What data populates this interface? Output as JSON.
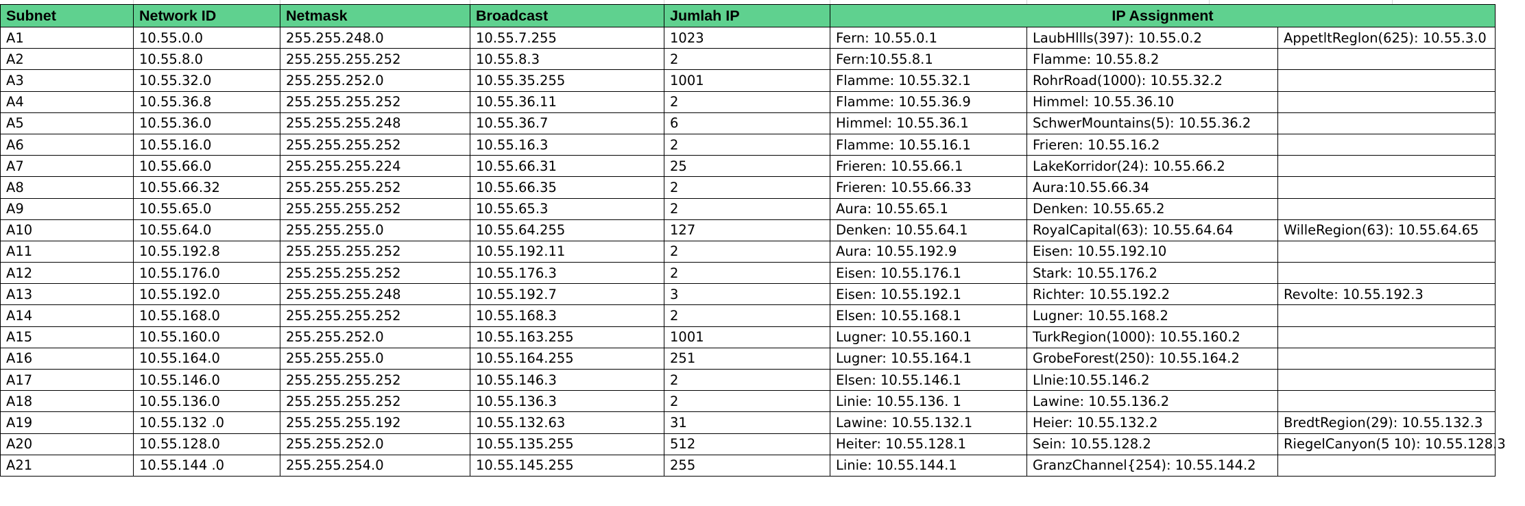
{
  "table": {
    "headers": {
      "subnet": "Subnet",
      "network_id": "Network ID",
      "netmask": "Netmask",
      "broadcast": "Broadcast",
      "jumlah_ip": "Jumlah IP",
      "ip_assignment": "IP Assignment"
    },
    "rows": [
      {
        "subnet": "A1",
        "network_id": "10.55.0.0",
        "netmask": "255.255.248.0",
        "broadcast": "10.55.7.255",
        "jumlah_ip": "1023",
        "assign": [
          "Fern: 10.55.0.1",
          "LaubHllls(397): 10.55.0.2",
          "AppetltReglon(625): 10.55.3.0"
        ]
      },
      {
        "subnet": "A2",
        "network_id": "10.55.8.0",
        "netmask": "255.255.255.252",
        "broadcast": "10.55.8.3",
        "jumlah_ip": "2",
        "assign": [
          "Fern:10.55.8.1",
          "Flamme: 10.55.8.2",
          ""
        ]
      },
      {
        "subnet": "A3",
        "network_id": "10.55.32.0",
        "netmask": "255.255.252.0",
        "broadcast": "10.55.35.255",
        "jumlah_ip": "1001",
        "assign": [
          "Flamme: 10.55.32.1",
          "RohrRoad(1000): 10.55.32.2",
          ""
        ]
      },
      {
        "subnet": "A4",
        "network_id": "10.55.36.8",
        "netmask": "255.255.255.252",
        "broadcast": "10.55.36.11",
        "jumlah_ip": "2",
        "assign": [
          "Flamme: 10.55.36.9",
          "Himmel: 10.55.36.10",
          ""
        ]
      },
      {
        "subnet": "A5",
        "network_id": "10.55.36.0",
        "netmask": "255.255.255.248",
        "broadcast": "10.55.36.7",
        "jumlah_ip": "6",
        "assign": [
          "Himmel: 10.55.36.1",
          "SchwerMountains(5): 10.55.36.2",
          ""
        ]
      },
      {
        "subnet": "A6",
        "network_id": "10.55.16.0",
        "netmask": "255.255.255.252",
        "broadcast": "10.55.16.3",
        "jumlah_ip": "2",
        "assign": [
          "Flamme: 10.55.16.1",
          "Frieren: 10.55.16.2",
          ""
        ]
      },
      {
        "subnet": "A7",
        "network_id": "10.55.66.0",
        "netmask": "255.255.255.224",
        "broadcast": "10.55.66.31",
        "jumlah_ip": "25",
        "assign": [
          "Frieren: 10.55.66.1",
          "LakeKorridor(24): 10.55.66.2",
          ""
        ]
      },
      {
        "subnet": "A8",
        "network_id": "10.55.66.32",
        "netmask": "255.255.255.252",
        "broadcast": "10.55.66.35",
        "jumlah_ip": "2",
        "assign": [
          "Frieren: 10.55.66.33",
          "Aura:10.55.66.34",
          ""
        ]
      },
      {
        "subnet": "A9",
        "network_id": "10.55.65.0",
        "netmask": "255.255.255.252",
        "broadcast": "10.55.65.3",
        "jumlah_ip": "2",
        "assign": [
          "Aura: 10.55.65.1",
          "Denken: 10.55.65.2",
          ""
        ]
      },
      {
        "subnet": "A10",
        "network_id": "10.55.64.0",
        "netmask": "255.255.255.0",
        "broadcast": "10.55.64.255",
        "jumlah_ip": "127",
        "assign": [
          "Denken: 10.55.64.1",
          "RoyalCapital(63): 10.55.64.64",
          "WilleRegion(63): 10.55.64.65"
        ]
      },
      {
        "subnet": "A11",
        "network_id": "10.55.192.8",
        "netmask": "255.255.255.252",
        "broadcast": "10.55.192.11",
        "jumlah_ip": "2",
        "assign": [
          "Aura: 10.55.192.9",
          "Eisen: 10.55.192.10",
          ""
        ]
      },
      {
        "subnet": "A12",
        "network_id": "10.55.176.0",
        "netmask": "255.255.255.252",
        "broadcast": "10.55.176.3",
        "jumlah_ip": "2",
        "assign": [
          "Eisen: 10.55.176.1",
          "Stark: 10.55.176.2",
          ""
        ]
      },
      {
        "subnet": "A13",
        "network_id": "10.55.192.0",
        "netmask": "255.255.255.248",
        "broadcast": "10.55.192.7",
        "jumlah_ip": "3",
        "assign": [
          "Eisen: 10.55.192.1",
          "Richter: 10.55.192.2",
          "Revolte: 10.55.192.3"
        ]
      },
      {
        "subnet": "A14",
        "network_id": "10.55.168.0",
        "netmask": "255.255.255.252",
        "broadcast": "10.55.168.3",
        "jumlah_ip": "2",
        "assign": [
          "Elsen: 10.55.168.1",
          "Lugner: 10.55.168.2",
          ""
        ]
      },
      {
        "subnet": "A15",
        "network_id": "10.55.160.0",
        "netmask": "255.255.252.0",
        "broadcast": "10.55.163.255",
        "jumlah_ip": "1001",
        "assign": [
          "Lugner: 10.55.160.1",
          "TurkRegion(1000): 10.55.160.2",
          ""
        ]
      },
      {
        "subnet": "A16",
        "network_id": "10.55.164.0",
        "netmask": "255.255.255.0",
        "broadcast": "10.55.164.255",
        "jumlah_ip": "251",
        "assign": [
          "Lugner: 10.55.164.1",
          "GrobeForest(250): 10.55.164.2",
          ""
        ]
      },
      {
        "subnet": "A17",
        "network_id": "10.55.146.0",
        "netmask": "255.255.255.252",
        "broadcast": "10.55.146.3",
        "jumlah_ip": "2",
        "assign": [
          "Elsen: 10.55.146.1",
          "Llnie:10.55.146.2",
          ""
        ]
      },
      {
        "subnet": "A18",
        "network_id": "10.55.136.0",
        "netmask": "255.255.255.252",
        "broadcast": "10.55.136.3",
        "jumlah_ip": "2",
        "assign": [
          "Linie: 10.55.136. 1",
          "Lawine: 10.55.136.2",
          ""
        ]
      },
      {
        "subnet": "A19",
        "network_id": "10.55.132 .0",
        "netmask": "255.255.255.192",
        "broadcast": "10.55.132.63",
        "jumlah_ip": "31",
        "assign": [
          "Lawine: 10.55.132.1",
          "Heier: 10.55.132.2",
          "BredtRegion(29): 10.55.132.3"
        ]
      },
      {
        "subnet": "A20",
        "network_id": "10.55.128.0",
        "netmask": "255.255.252.0",
        "broadcast": "10.55.135.255",
        "jumlah_ip": "512",
        "assign": [
          "Heiter: 10.55.128.1",
          "Sein: 10.55.128.2",
          "RiegelCanyon(5 10): 10.55.128.3"
        ]
      },
      {
        "subnet": "A21",
        "network_id": "10.55.144 .0",
        "netmask": "255.255.254.0",
        "broadcast": "10.55.145.255",
        "jumlah_ip": "255",
        "assign": [
          "Linie: 10.55.144.1",
          "GranzChannel{254): 10.55.144.2",
          ""
        ]
      }
    ]
  }
}
